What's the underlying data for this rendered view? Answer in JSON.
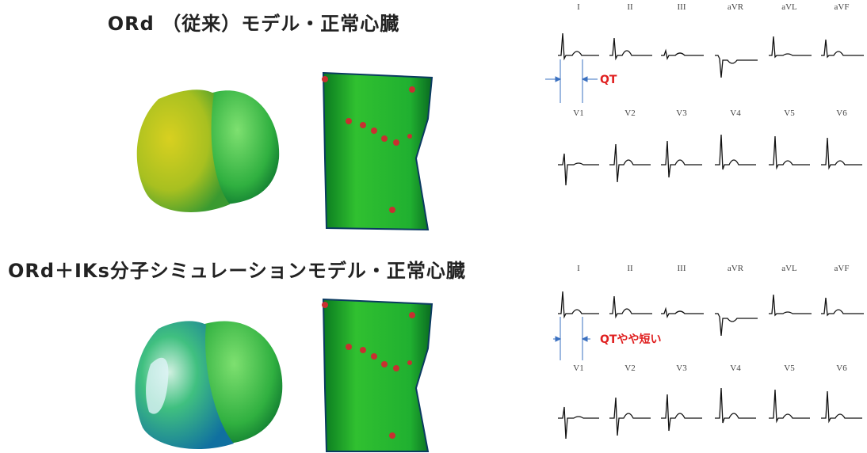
{
  "panels": [
    {
      "title": "ORd （従来）モデル・正常心臓",
      "limb_leads": [
        "I",
        "II",
        "III",
        "aVR",
        "aVL",
        "aVF"
      ],
      "chest_leads": [
        "V1",
        "V2",
        "V3",
        "V4",
        "V5",
        "V6"
      ],
      "qt_label": "QT"
    },
    {
      "title": "ORd＋IKs分子シミュレーションモデル・正常心臓",
      "limb_leads": [
        "I",
        "II",
        "III",
        "aVR",
        "aVL",
        "aVF"
      ],
      "chest_leads": [
        "V1",
        "V2",
        "V3",
        "V4",
        "V5",
        "V6"
      ],
      "qt_label": "QTやや短い"
    }
  ]
}
